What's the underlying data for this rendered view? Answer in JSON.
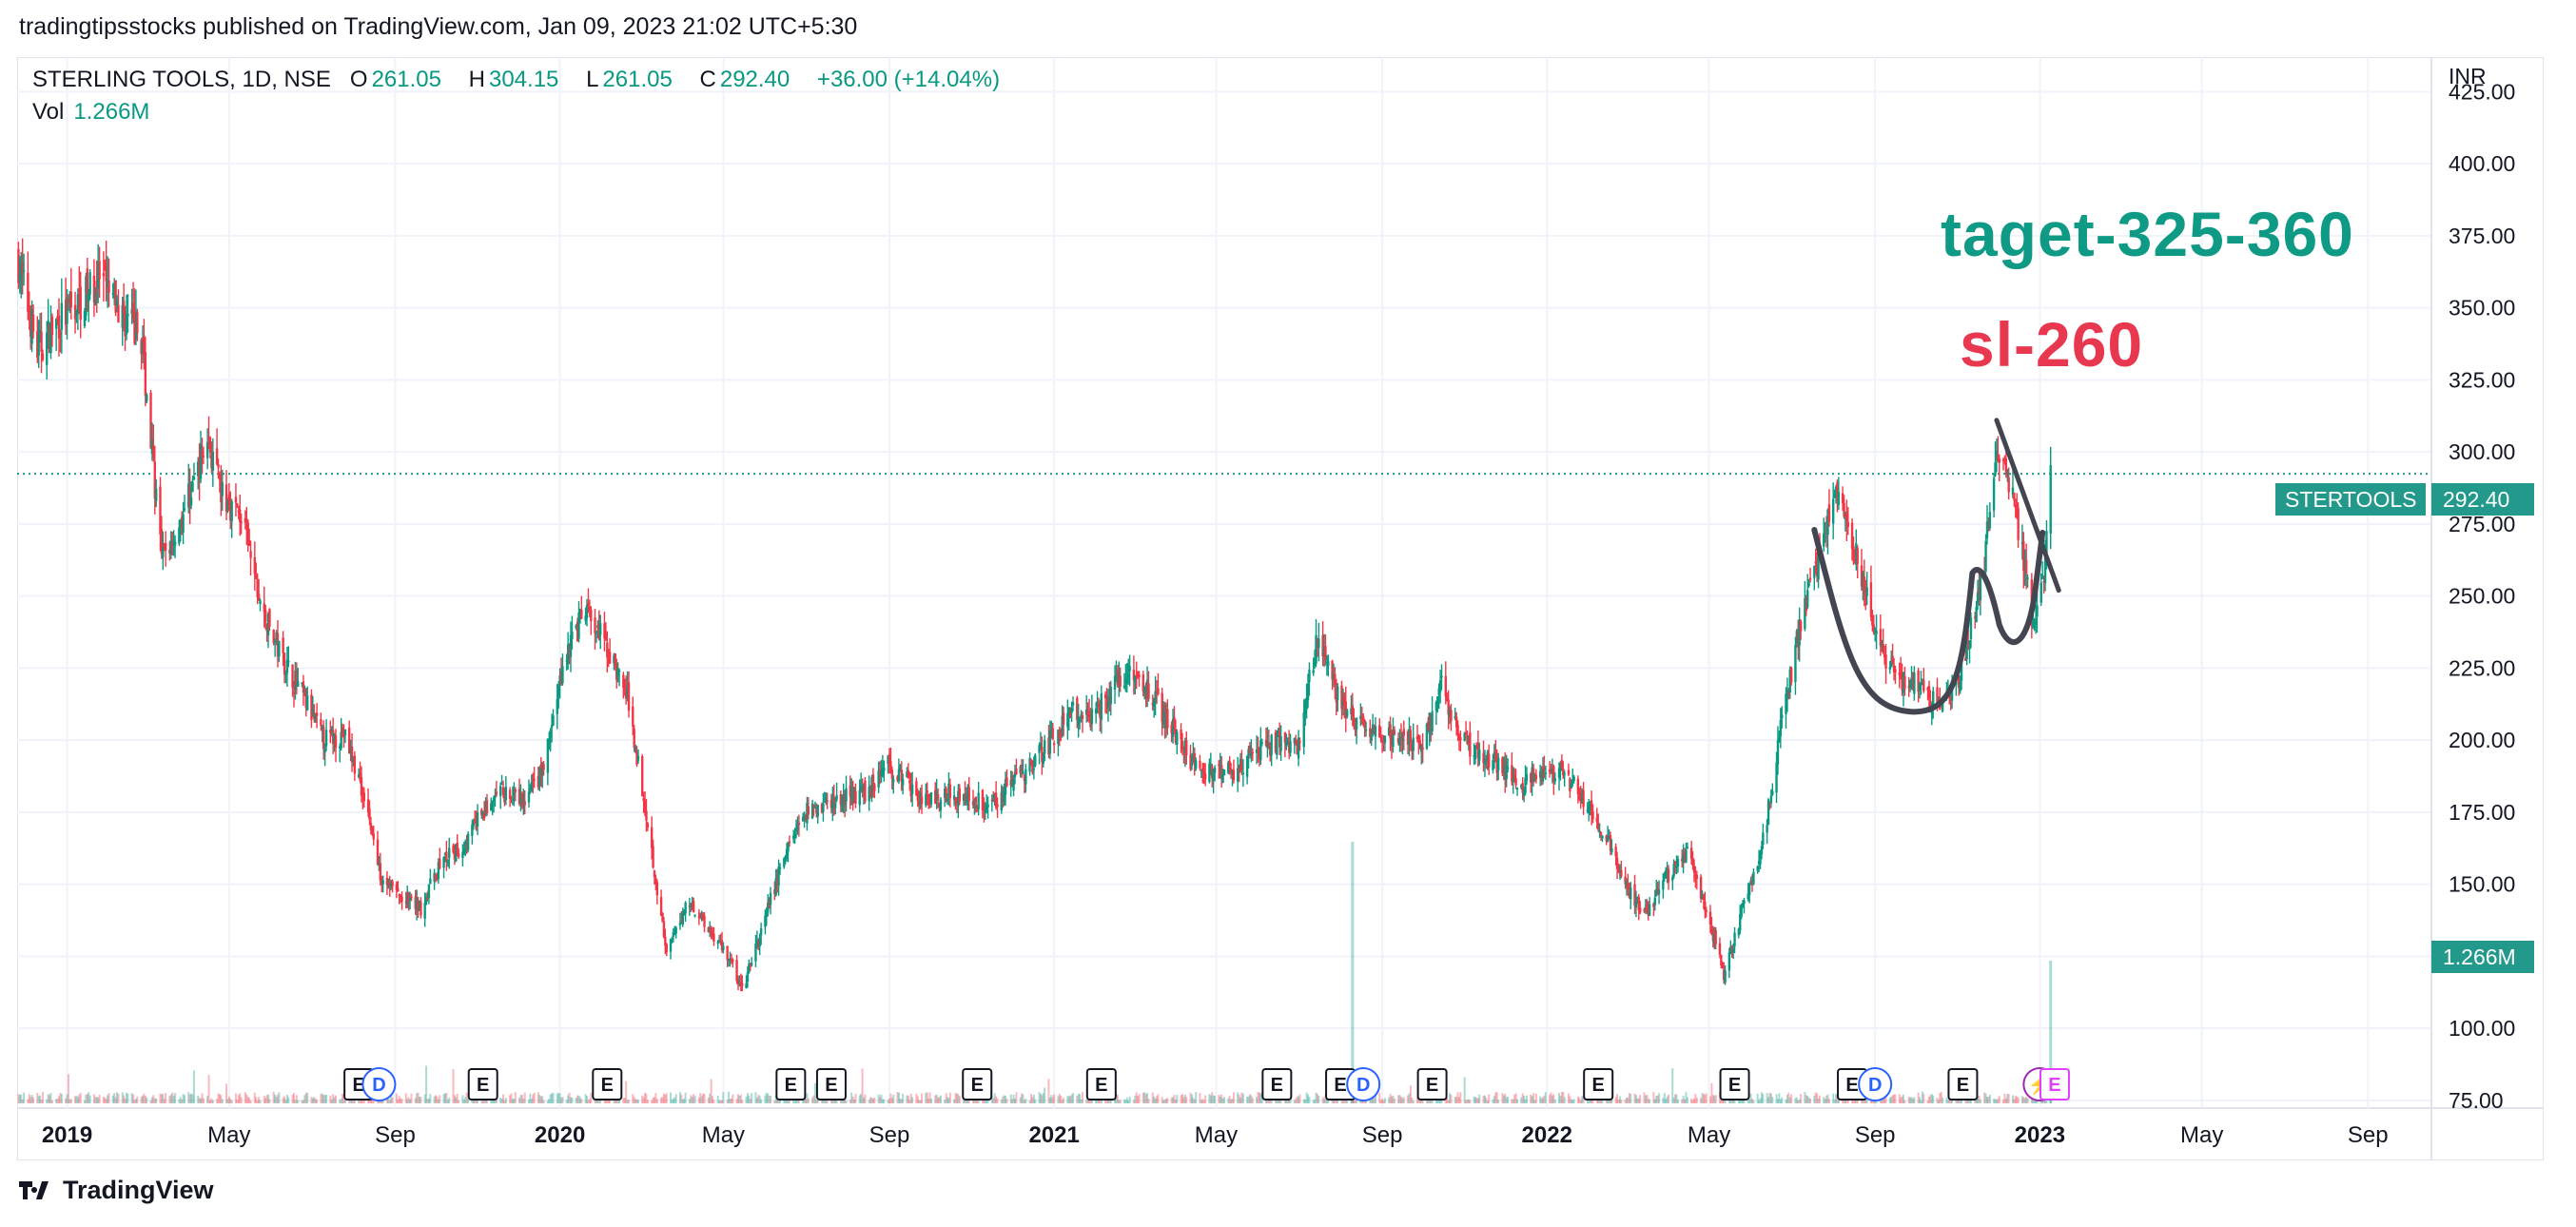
{
  "header": {
    "published_text": "tradingtipsstocks published on TradingView.com, Jan 09, 2023 21:02 UTC+5:30"
  },
  "legend": {
    "symbol_text": "STERLING TOOLS, 1D, NSE",
    "open_label": "O",
    "open_value": "261.05",
    "high_label": "H",
    "high_value": "304.15",
    "low_label": "L",
    "low_value": "261.05",
    "close_label": "C",
    "close_value": "292.40",
    "change": "+36.00 (+14.04%)",
    "vol_label": "Vol",
    "vol_value": "1.266M"
  },
  "axis": {
    "currency": "INR"
  },
  "annotations": {
    "target": "taget-325-360",
    "stop_loss": "sl-260"
  },
  "price_tag": {
    "symbol": "STERTOOLS",
    "value": "292.40"
  },
  "volume_tag": {
    "value": "1.266M"
  },
  "footer": {
    "brand": "TradingView"
  },
  "colors": {
    "up": "#089981",
    "down": "#f23645",
    "target_text": "#0e9a84",
    "sl_text": "#e8384f",
    "tag_bg": "#22998a",
    "drawing": "#434651"
  },
  "events": [
    {
      "kind": "E"
    },
    {
      "kind": "D"
    },
    {
      "kind": "E"
    },
    {
      "kind": "E"
    },
    {
      "kind": "E"
    },
    {
      "kind": "E"
    },
    {
      "kind": "E"
    },
    {
      "kind": "E"
    },
    {
      "kind": "E"
    },
    {
      "kind": "E"
    },
    {
      "kind": "D"
    },
    {
      "kind": "E"
    },
    {
      "kind": "E"
    },
    {
      "kind": "E"
    },
    {
      "kind": "E"
    },
    {
      "kind": "D"
    },
    {
      "kind": "E"
    },
    {
      "kind": "⚡"
    },
    {
      "kind": "E"
    }
  ],
  "chart_data": {
    "type": "candlestick",
    "title": "STERLING TOOLS, 1D, NSE",
    "ylabel": "INR",
    "ylim": [
      73,
      437
    ],
    "y_ticks": [
      75,
      100,
      125,
      150,
      175,
      200,
      225,
      250,
      275,
      300,
      325,
      350,
      375,
      400,
      425
    ],
    "y_tick_labels": [
      "75.00",
      "100.00",
      "125.00",
      "150.00",
      "175.00",
      "200.00",
      "225.00",
      "250.00",
      "275.00",
      "300.00",
      "325.00",
      "350.00",
      "375.00",
      "400.00",
      "425.00"
    ],
    "x_range": [
      "2018-11-25",
      "2023-10-18"
    ],
    "x_ticks": [
      {
        "label": "2019",
        "date": "2019-01-01",
        "bold": true
      },
      {
        "label": "May",
        "date": "2019-05-01"
      },
      {
        "label": "Sep",
        "date": "2019-09-01"
      },
      {
        "label": "2020",
        "date": "2020-01-01",
        "bold": true
      },
      {
        "label": "May",
        "date": "2020-05-01"
      },
      {
        "label": "Sep",
        "date": "2020-09-01"
      },
      {
        "label": "2021",
        "date": "2021-01-01",
        "bold": true
      },
      {
        "label": "May",
        "date": "2021-05-01"
      },
      {
        "label": "Sep",
        "date": "2021-09-01"
      },
      {
        "label": "2022",
        "date": "2022-01-01",
        "bold": true
      },
      {
        "label": "May",
        "date": "2022-05-01"
      },
      {
        "label": "Sep",
        "date": "2022-09-01"
      },
      {
        "label": "2023",
        "date": "2023-01-01",
        "bold": true
      },
      {
        "label": "May",
        "date": "2023-05-01"
      },
      {
        "label": "Sep",
        "date": "2023-09-01"
      }
    ],
    "last_price": 292.4,
    "last_bar": {
      "date": "2023-01-09",
      "open": 261.05,
      "high": 304.15,
      "low": 261.05,
      "close": 292.4,
      "volume": "1.266M"
    },
    "series": [
      {
        "name": "price",
        "points": [
          [
            "2018-11-25",
            368
          ],
          [
            "2018-12-10",
            335
          ],
          [
            "2018-12-25",
            345
          ],
          [
            "2019-01-10",
            352
          ],
          [
            "2019-01-25",
            360
          ],
          [
            "2019-02-10",
            348
          ],
          [
            "2019-02-25",
            340
          ],
          [
            "2019-03-05",
            300
          ],
          [
            "2019-03-12",
            262
          ],
          [
            "2019-03-25",
            275
          ],
          [
            "2019-04-05",
            290
          ],
          [
            "2019-04-15",
            305
          ],
          [
            "2019-04-25",
            285
          ],
          [
            "2019-05-10",
            278
          ],
          [
            "2019-05-25",
            245
          ],
          [
            "2019-06-10",
            228
          ],
          [
            "2019-06-25",
            215
          ],
          [
            "2019-07-10",
            200
          ],
          [
            "2019-07-25",
            202
          ],
          [
            "2019-08-10",
            180
          ],
          [
            "2019-08-20",
            155
          ],
          [
            "2019-09-05",
            145
          ],
          [
            "2019-09-20",
            142
          ],
          [
            "2019-10-05",
            158
          ],
          [
            "2019-10-20",
            162
          ],
          [
            "2019-11-05",
            175
          ],
          [
            "2019-11-20",
            182
          ],
          [
            "2019-12-05",
            178
          ],
          [
            "2019-12-20",
            190
          ],
          [
            "2020-01-05",
            230
          ],
          [
            "2020-01-20",
            245
          ],
          [
            "2020-02-05",
            232
          ],
          [
            "2020-02-20",
            215
          ],
          [
            "2020-03-05",
            175
          ],
          [
            "2020-03-20",
            125
          ],
          [
            "2020-04-05",
            145
          ],
          [
            "2020-04-20",
            135
          ],
          [
            "2020-05-05",
            125
          ],
          [
            "2020-05-15",
            113
          ],
          [
            "2020-05-30",
            135
          ],
          [
            "2020-06-15",
            160
          ],
          [
            "2020-06-30",
            175
          ],
          [
            "2020-07-15",
            178
          ],
          [
            "2020-07-30",
            180
          ],
          [
            "2020-08-15",
            182
          ],
          [
            "2020-08-30",
            192
          ],
          [
            "2020-09-15",
            185
          ],
          [
            "2020-09-30",
            178
          ],
          [
            "2020-10-15",
            182
          ],
          [
            "2020-10-30",
            180
          ],
          [
            "2020-11-15",
            178
          ],
          [
            "2020-11-30",
            185
          ],
          [
            "2020-12-15",
            192
          ],
          [
            "2020-12-30",
            200
          ],
          [
            "2021-01-15",
            210
          ],
          [
            "2021-01-30",
            208
          ],
          [
            "2021-02-15",
            220
          ],
          [
            "2021-02-28",
            225
          ],
          [
            "2021-03-15",
            215
          ],
          [
            "2021-03-30",
            205
          ],
          [
            "2021-04-15",
            190
          ],
          [
            "2021-04-30",
            188
          ],
          [
            "2021-05-15",
            190
          ],
          [
            "2021-05-30",
            195
          ],
          [
            "2021-06-15",
            200
          ],
          [
            "2021-06-30",
            198
          ],
          [
            "2021-07-15",
            235
          ],
          [
            "2021-07-30",
            215
          ],
          [
            "2021-08-15",
            205
          ],
          [
            "2021-08-30",
            200
          ],
          [
            "2021-09-15",
            202
          ],
          [
            "2021-09-30",
            198
          ],
          [
            "2021-10-15",
            218
          ],
          [
            "2021-10-30",
            200
          ],
          [
            "2021-11-15",
            195
          ],
          [
            "2021-11-30",
            190
          ],
          [
            "2021-12-15",
            185
          ],
          [
            "2021-12-30",
            190
          ],
          [
            "2022-01-15",
            188
          ],
          [
            "2022-01-30",
            178
          ],
          [
            "2022-02-15",
            165
          ],
          [
            "2022-02-28",
            150
          ],
          [
            "2022-03-15",
            140
          ],
          [
            "2022-03-30",
            152
          ],
          [
            "2022-04-15",
            160
          ],
          [
            "2022-04-30",
            140
          ],
          [
            "2022-05-12",
            118
          ],
          [
            "2022-05-25",
            140
          ],
          [
            "2022-06-10",
            165
          ],
          [
            "2022-06-25",
            210
          ],
          [
            "2022-07-10",
            245
          ],
          [
            "2022-07-25",
            270
          ],
          [
            "2022-08-05",
            290
          ],
          [
            "2022-08-20",
            260
          ],
          [
            "2022-09-05",
            230
          ],
          [
            "2022-09-20",
            222
          ],
          [
            "2022-10-05",
            218
          ],
          [
            "2022-10-20",
            210
          ],
          [
            "2022-11-05",
            225
          ],
          [
            "2022-11-20",
            258
          ],
          [
            "2022-11-30",
            300
          ],
          [
            "2022-12-10",
            290
          ],
          [
            "2022-12-20",
            262
          ],
          [
            "2022-12-28",
            238
          ],
          [
            "2023-01-05",
            262
          ],
          [
            "2023-01-09",
            292.4
          ]
        ]
      }
    ],
    "volume_peaks": [
      {
        "date": "2021-08-10",
        "value": "spike"
      },
      {
        "date": "2023-01-09",
        "value": "1.266M"
      }
    ]
  }
}
